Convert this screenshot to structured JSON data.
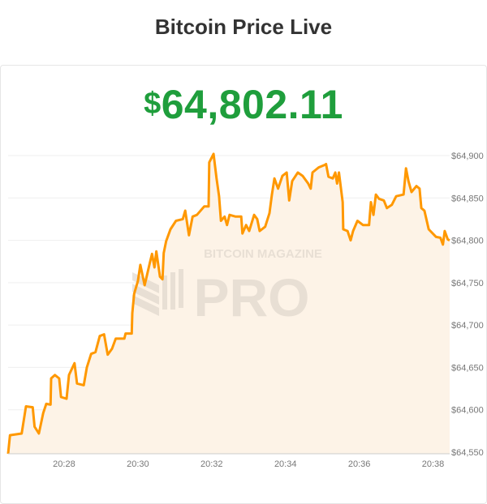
{
  "header": {
    "title": "Bitcoin Price Live"
  },
  "price": {
    "currency_symbol": "$",
    "value": "64,802.11",
    "color": "#1f9e3c"
  },
  "watermark": {
    "line1": "BITCOIN MAGAZINE",
    "line2": "PRO"
  },
  "chart_data": {
    "type": "area",
    "title": "",
    "xlabel": "",
    "ylabel": "",
    "line_color": "#ff9800",
    "fill_color": "#fdf3e7",
    "grid": true,
    "xlim": [
      "20:26:29",
      "20:38:27"
    ],
    "ylim": [
      64550,
      64900
    ],
    "x_ticks": [
      "20:28",
      "20:30",
      "20:32",
      "20:34",
      "20:36",
      "20:38"
    ],
    "y_ticks": [
      64550,
      64600,
      64650,
      64700,
      64750,
      64800,
      64850,
      64900
    ],
    "y_tick_labels": [
      "$64,550",
      "$64,600",
      "$64,650",
      "$64,700",
      "$64,750",
      "$64,800",
      "$64,850",
      "$64,900"
    ],
    "series": [
      {
        "x": [
          "20:26:29",
          "20:26:32",
          "20:26:51",
          "20:26:58",
          "20:27:09",
          "20:27:12",
          "20:27:19",
          "20:27:26",
          "20:27:31",
          "20:27:38",
          "20:27:39",
          "20:27:45",
          "20:27:52",
          "20:27:55",
          "20:28:04",
          "20:28:08",
          "20:28:17",
          "20:28:21",
          "20:28:32",
          "20:28:37",
          "20:28:44",
          "20:28:51",
          "20:28:58",
          "20:29:05",
          "20:29:11",
          "20:29:18",
          "20:29:24",
          "20:29:38",
          "20:29:40",
          "20:29:50",
          "20:29:51",
          "20:29:54",
          "20:30:00",
          "20:30:04",
          "20:30:11",
          "20:30:20",
          "20:30:23",
          "20:30:27",
          "20:30:30",
          "20:30:36",
          "20:30:40",
          "20:30:42",
          "20:30:46",
          "20:30:53",
          "20:31:02",
          "20:31:13",
          "20:31:17",
          "20:31:23",
          "20:31:29",
          "20:31:36",
          "20:31:48",
          "20:31:55",
          "20:31:56",
          "20:32:03",
          "20:32:08",
          "20:32:12",
          "20:32:15",
          "20:32:21",
          "20:32:25",
          "20:32:29",
          "20:32:39",
          "20:32:48",
          "20:32:50",
          "20:32:56",
          "20:33:01",
          "20:33:09",
          "20:33:14",
          "20:33:18",
          "20:33:27",
          "20:33:34",
          "20:33:38",
          "20:33:42",
          "20:33:48",
          "20:33:55",
          "20:34:02",
          "20:34:06",
          "20:34:11",
          "20:34:20",
          "20:34:28",
          "20:34:37",
          "20:34:41",
          "20:34:44",
          "20:34:54",
          "20:35:04",
          "20:35:06",
          "20:35:10",
          "20:35:17",
          "20:35:21",
          "20:35:24",
          "20:35:27",
          "20:35:33",
          "20:35:34",
          "20:35:41",
          "20:35:46",
          "20:35:50",
          "20:35:57",
          "20:36:06",
          "20:36:16",
          "20:36:19",
          "20:36:23",
          "20:36:27",
          "20:36:32",
          "20:36:40",
          "20:36:45",
          "20:36:53",
          "20:37:00",
          "20:37:12",
          "20:37:16",
          "20:37:20",
          "20:37:25",
          "20:37:33",
          "20:37:38",
          "20:37:41",
          "20:37:46",
          "20:37:53",
          "20:38:05",
          "20:38:12",
          "20:38:16",
          "20:38:19",
          "20:38:24",
          "20:38:27"
        ],
        "y": [
          64548,
          64570,
          64572,
          64604,
          64603,
          64580,
          64572,
          64596,
          64607,
          64606,
          64637,
          64641,
          64637,
          64615,
          64613,
          64641,
          64655,
          64631,
          64629,
          64650,
          64666,
          64668,
          64687,
          64689,
          64665,
          64672,
          64684,
          64684,
          64690,
          64690,
          64714,
          64737,
          64752,
          64771,
          64747,
          64775,
          64784,
          64768,
          64787,
          64757,
          64754,
          64785,
          64799,
          64813,
          64823,
          64825,
          64835,
          64806,
          64828,
          64830,
          64840,
          64840,
          64892,
          64902,
          64873,
          64852,
          64823,
          64828,
          64818,
          64830,
          64828,
          64828,
          64808,
          64818,
          64811,
          64830,
          64825,
          64811,
          64816,
          64832,
          64854,
          64873,
          64861,
          64876,
          64880,
          64847,
          64870,
          64880,
          64876,
          64867,
          64861,
          64880,
          64886,
          64889,
          64890,
          64875,
          64873,
          64880,
          64867,
          64880,
          64845,
          64813,
          64811,
          64800,
          64811,
          64823,
          64818,
          64818,
          64845,
          64830,
          64854,
          64849,
          64847,
          64838,
          64842,
          64852,
          64854,
          64885,
          64870,
          64857,
          64864,
          64861,
          64838,
          64835,
          64813,
          64804,
          64803,
          64795,
          64811,
          64801,
          64800
        ]
      }
    ]
  }
}
